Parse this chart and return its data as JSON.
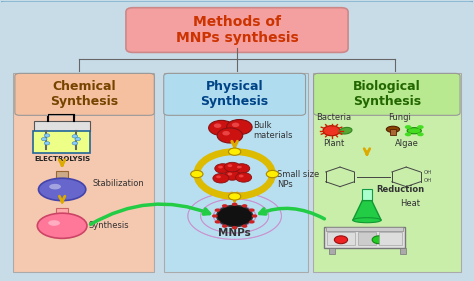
{
  "title": "Methods of\nMNPs synthesis",
  "title_box_color": "#f4a0a0",
  "title_text_color": "#cc3300",
  "bg_color": "#c8dce8",
  "outer_border_color": "#7ab0cc",
  "section_bg_colors": [
    "#f5c8b0",
    "#b8dff0",
    "#c8eeaa"
  ],
  "section_header_colors": [
    "#f4c0a0",
    "#b0dcf0",
    "#b8e890"
  ],
  "section_header_text_colors": [
    "#774400",
    "#004488",
    "#226600"
  ],
  "section_header_labels": [
    "Chemical\nSynthesis",
    "Physical\nSynthesis",
    "Biological\nSynthesis"
  ],
  "chemical_labels": [
    "ELECTROLYSIS",
    "Stabilization",
    "Synthesis"
  ],
  "physical_labels": [
    "Bulk\nmaterials",
    "Small size\nNPs",
    "MNPs"
  ],
  "biological_labels": [
    "Bacteria",
    "Fungi",
    "Plant",
    "Algae",
    "Reduction",
    "Heat"
  ],
  "arrow_color": "#ddaa00",
  "green_arrow_color": "#22cc44",
  "mnp_color": "#111111",
  "font_size_title": 10,
  "font_size_section": 9,
  "font_size_labels": 6
}
